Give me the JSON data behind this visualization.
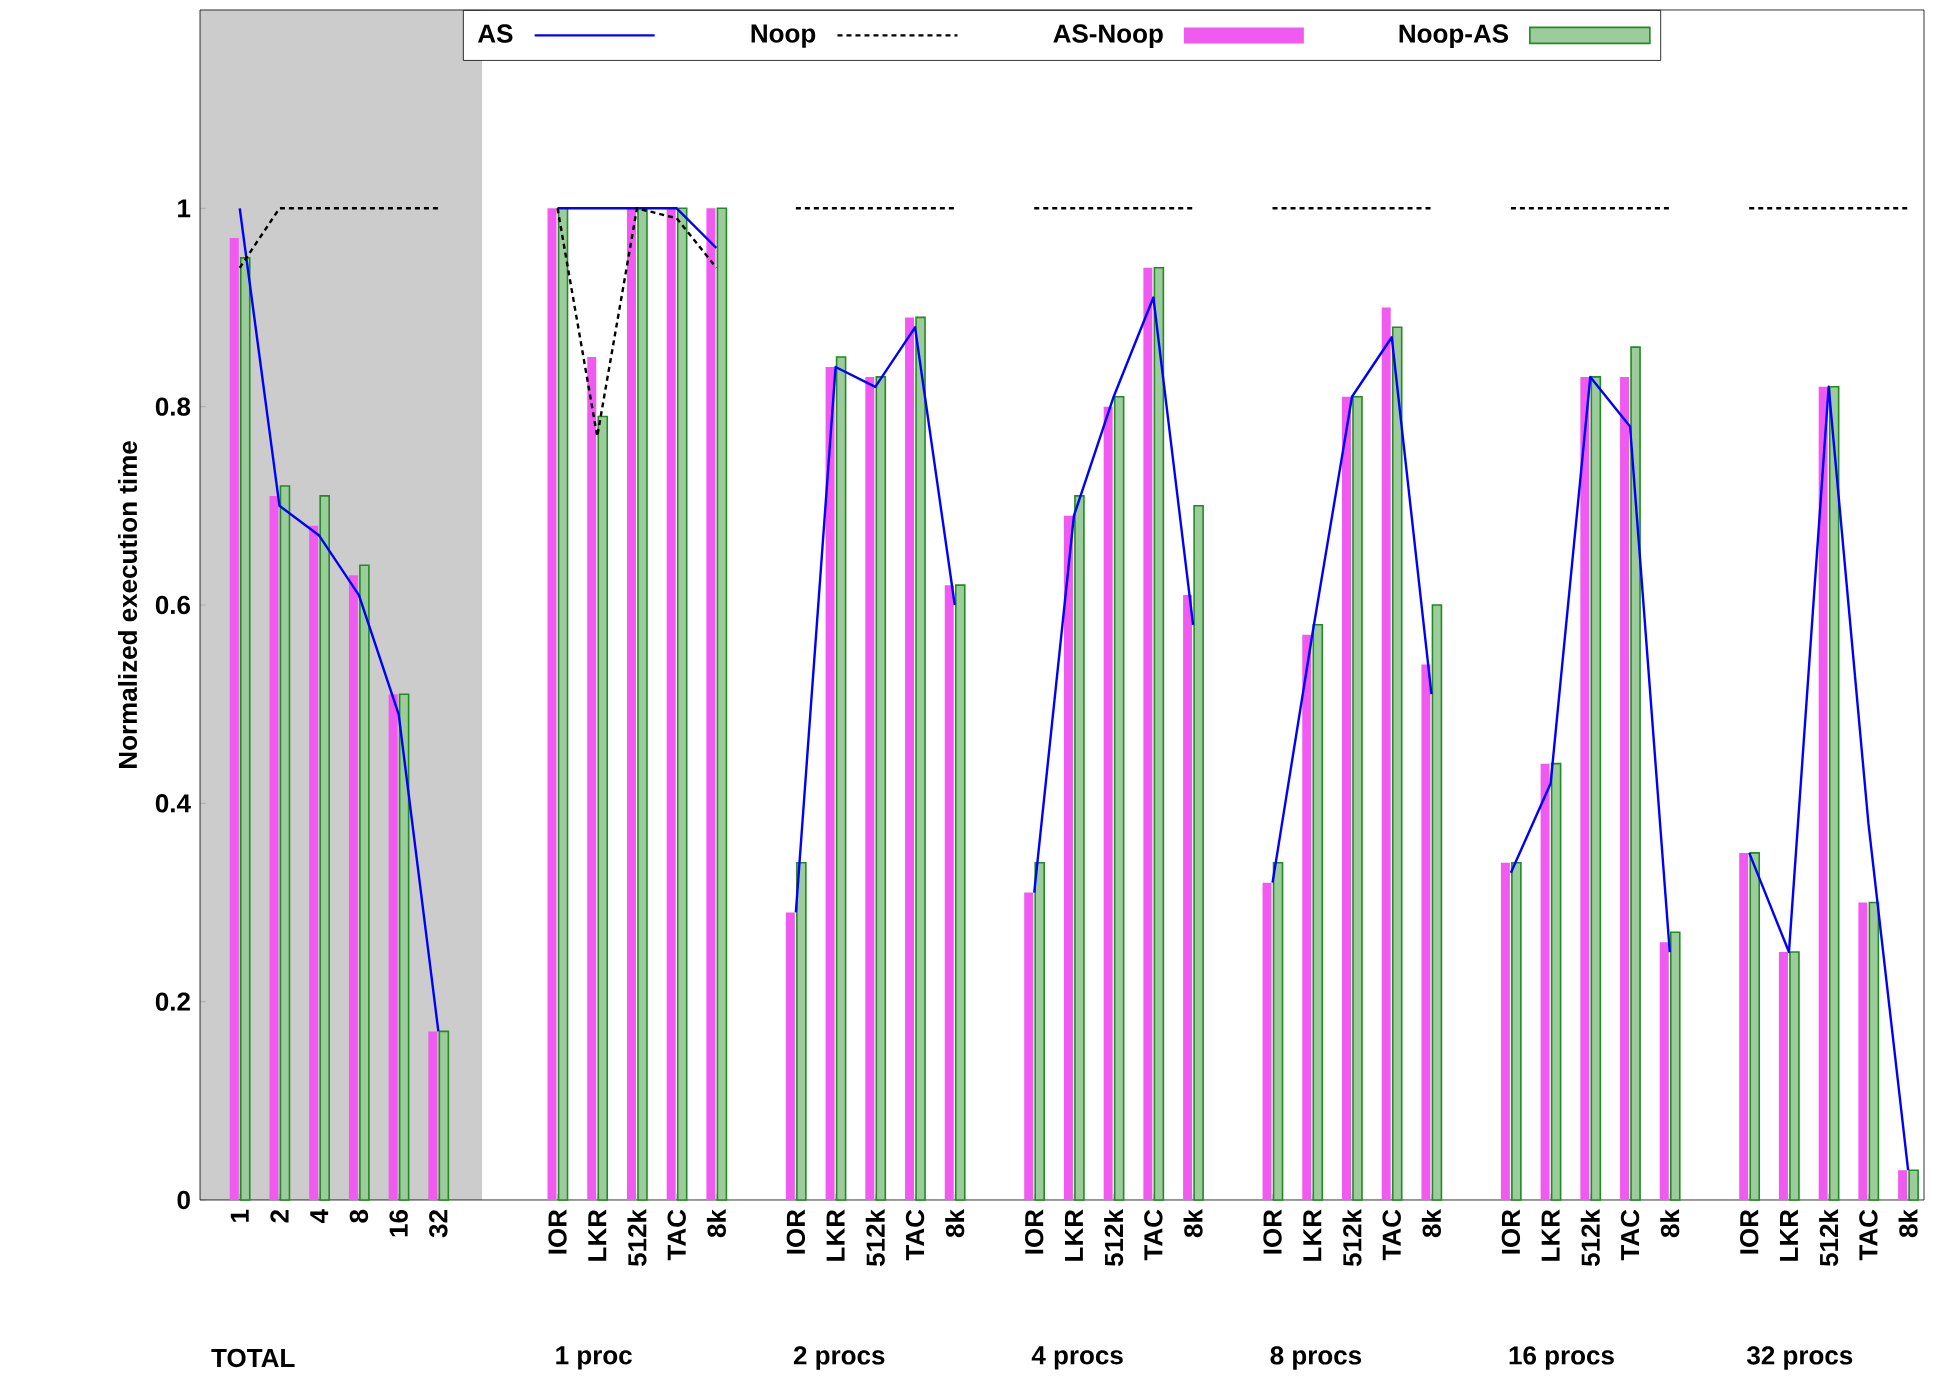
{
  "chart_data": {
    "type": "bar",
    "ylabel": "Normalized execution time",
    "categories": [
      "1",
      "2",
      "4",
      "8",
      "16",
      "32",
      null,
      null,
      "IOR",
      "LKR",
      "512k",
      "TAC",
      "8k",
      null,
      "IOR",
      "LKR",
      "512k",
      "TAC",
      "8k",
      null,
      "IOR",
      "LKR",
      "512k",
      "TAC",
      "8k",
      null,
      "IOR",
      "LKR",
      "512k",
      "TAC",
      "8k",
      null,
      "IOR",
      "LKR",
      "512k",
      "TAC",
      "8k",
      null,
      "IOR",
      "LKR",
      "512k",
      "TAC",
      "8k"
    ],
    "series": [
      {
        "type": "line",
        "name": "AS",
        "color": "#0000ff",
        "line_style": "solid",
        "values": [
          1.0,
          0.7,
          0.67,
          0.61,
          0.49,
          0.17,
          null,
          null,
          1,
          1,
          1,
          1,
          0.96,
          null,
          0.29,
          0.84,
          0.82,
          0.88,
          0.6,
          null,
          0.31,
          0.69,
          0.81,
          0.91,
          0.58,
          null,
          0.32,
          0.57,
          0.81,
          0.87,
          0.51,
          null,
          0.33,
          0.42,
          0.83,
          0.78,
          0.25,
          null,
          0.35,
          0.25,
          0.82,
          0.38,
          0.03
        ]
      },
      {
        "type": "line",
        "name": "Noop",
        "color": "#000000",
        "line_style": "dashed",
        "values": [
          0.94,
          1,
          1,
          1,
          1,
          1,
          null,
          null,
          1,
          0.77,
          1,
          0.99,
          0.94,
          null,
          1,
          1,
          1,
          1,
          1,
          null,
          1,
          1,
          1,
          1,
          1,
          null,
          1,
          1,
          1,
          1,
          1,
          null,
          1,
          1,
          1,
          1,
          1,
          null,
          1,
          1,
          1,
          1,
          1
        ]
      },
      {
        "name": "AS-Noop",
        "color": "#f05af0",
        "values": [
          0.97,
          0.71,
          0.68,
          0.63,
          0.51,
          0.17,
          null,
          null,
          1,
          0.85,
          1,
          1,
          1,
          null,
          0.29,
          0.84,
          0.83,
          0.89,
          0.62,
          null,
          0.31,
          0.69,
          0.8,
          0.94,
          0.61,
          null,
          0.32,
          0.57,
          0.81,
          0.9,
          0.54,
          null,
          0.34,
          0.44,
          0.83,
          0.83,
          0.26,
          null,
          0.35,
          0.25,
          0.82,
          0.3,
          0.03
        ]
      },
      {
        "name": "Noop-AS",
        "color": "#228b22",
        "values": [
          0.95,
          0.72,
          0.71,
          0.64,
          0.51,
          0.17,
          null,
          null,
          1,
          0.79,
          1,
          1,
          1,
          null,
          0.34,
          0.85,
          0.83,
          0.89,
          0.62,
          null,
          0.34,
          0.71,
          0.81,
          0.94,
          0.7,
          null,
          0.34,
          0.58,
          0.81,
          0.88,
          0.6,
          null,
          0.34,
          0.44,
          0.83,
          0.86,
          0.27,
          null,
          0.35,
          0.25,
          0.82,
          0.3,
          0.03
        ]
      }
    ],
    "ylim": [
      0,
      1.2
    ],
    "yticks": [
      0,
      0.2,
      0.4,
      0.6,
      0.8,
      1
    ],
    "annotations": [
      "TOTAL",
      "1 proc",
      "2 procs",
      "4 procs",
      "8 procs",
      "16 procs",
      "32 procs"
    ],
    "legend": "top",
    "grid": false
  }
}
